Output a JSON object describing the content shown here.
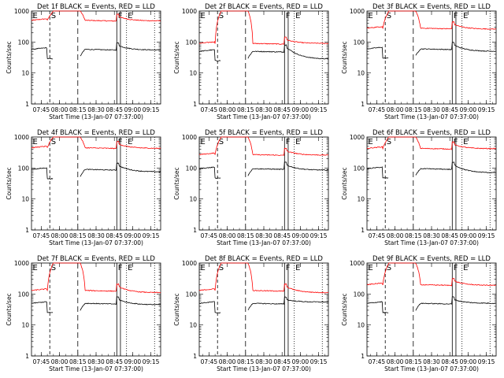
{
  "chart_data": {
    "type": "line",
    "grid": false,
    "xlabel": "Start Time (13-Jan-07 07:37:00)",
    "ylabel": "Counts/sec",
    "x_ticks": [
      "07:45",
      "08:00",
      "08:15",
      "08:30",
      "08:45",
      "09:00",
      "09:15"
    ],
    "y_ticks": [
      "1",
      "10",
      "100",
      "1000"
    ],
    "y_scale": "log",
    "ylim": [
      1,
      1000
    ],
    "xlim_minutes_after_start": [
      0,
      106
    ],
    "series_colors": {
      "events": "#000000",
      "lld": "#ff0000"
    },
    "markers": [
      {
        "label": "E",
        "minutes_after_start": 0,
        "style": "solid"
      },
      {
        "label": "S",
        "minutes_after_start": 15,
        "style": "dashed"
      },
      {
        "label": "F",
        "minutes_after_start": 70,
        "style": "solid"
      },
      {
        "label": "E",
        "minutes_after_start": 78,
        "style": "dotted"
      }
    ],
    "panels": [
      {
        "title": "Det 1f BLACK = Events, RED = LLD",
        "events_base": 58,
        "lld_base": 500,
        "lld_gap": 1000,
        "events_after": 55,
        "lld_after": 480
      },
      {
        "title": "Det 2f BLACK = Events, RED = LLD",
        "events_base": 50,
        "lld_base": 90,
        "lld_gap": 1000,
        "events_after": 28,
        "lld_after": 90
      },
      {
        "title": "Det 3f BLACK = Events, RED = LLD",
        "events_base": 60,
        "lld_base": 280,
        "lld_gap": 1000,
        "events_after": 50,
        "lld_after": 260
      },
      {
        "title": "Det 4f BLACK = Events, RED = LLD",
        "events_base": 90,
        "lld_base": 450,
        "lld_gap": 1000,
        "events_after": 75,
        "lld_after": 430
      },
      {
        "title": "Det 5f BLACK = Events, RED = LLD",
        "events_base": 95,
        "lld_base": 270,
        "lld_gap": 1000,
        "events_after": 85,
        "lld_after": 260
      },
      {
        "title": "Det 6f BLACK = Events, RED = LLD",
        "events_base": 95,
        "lld_base": 430,
        "lld_gap": 1000,
        "events_after": 70,
        "lld_after": 420
      },
      {
        "title": "Det 7f BLACK = Events, RED = LLD",
        "events_base": 50,
        "lld_base": 130,
        "lld_gap": 1000,
        "events_after": 45,
        "lld_after": 110
      },
      {
        "title": "Det 8f BLACK = Events, RED = LLD",
        "events_base": 50,
        "lld_base": 130,
        "lld_gap": 1000,
        "events_after": 55,
        "lld_after": 110
      },
      {
        "title": "Det 9f BLACK = Events, RED = LLD",
        "events_base": 50,
        "lld_base": 200,
        "lld_gap": 1000,
        "events_after": 50,
        "lld_after": 190
      }
    ]
  }
}
